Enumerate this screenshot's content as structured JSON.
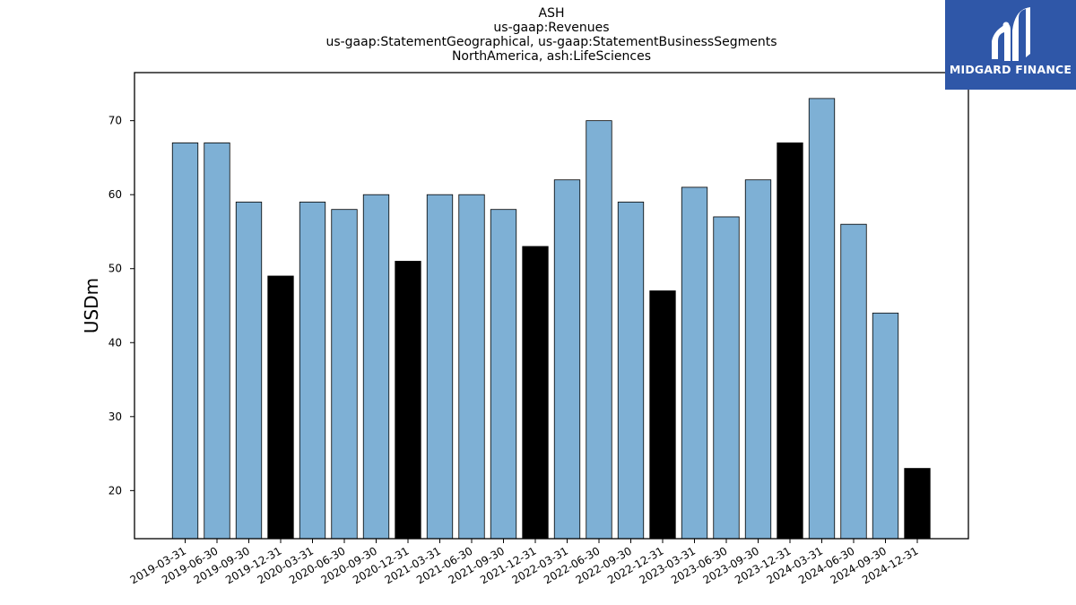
{
  "chart_data": {
    "type": "bar",
    "title_lines": [
      "ASH",
      "us-gaap:Revenues",
      "us-gaap:StatementGeographical, us-gaap:StatementBusinessSegments",
      "NorthAmerica, ash:LifeSciences"
    ],
    "ylabel": "USDm",
    "xlabel": "",
    "ylim": [
      13.5,
      76.5
    ],
    "yticks": [
      20,
      30,
      40,
      50,
      60,
      70
    ],
    "grid": false,
    "categories": [
      "2019-03-31",
      "2019-06-30",
      "2019-09-30",
      "2019-12-31",
      "2020-03-31",
      "2020-06-30",
      "2020-09-30",
      "2020-12-31",
      "2021-03-31",
      "2021-06-30",
      "2021-09-30",
      "2021-12-31",
      "2022-03-31",
      "2022-06-30",
      "2022-09-30",
      "2022-12-31",
      "2023-03-31",
      "2023-06-30",
      "2023-09-30",
      "2023-12-31",
      "2024-03-31",
      "2024-06-30",
      "2024-09-30",
      "2024-12-31"
    ],
    "values": [
      67,
      67,
      59,
      49,
      59,
      58,
      60,
      51,
      60,
      60,
      58,
      53,
      62,
      70,
      59,
      47,
      61,
      57,
      62,
      67,
      73,
      56,
      44,
      23
    ],
    "colors": {
      "quarter": "#7eb0d5",
      "year_end": "#000000",
      "edge": "#000000"
    }
  },
  "logo": {
    "text": "MIDGARD FINANCE",
    "background": "#2f57a8"
  }
}
